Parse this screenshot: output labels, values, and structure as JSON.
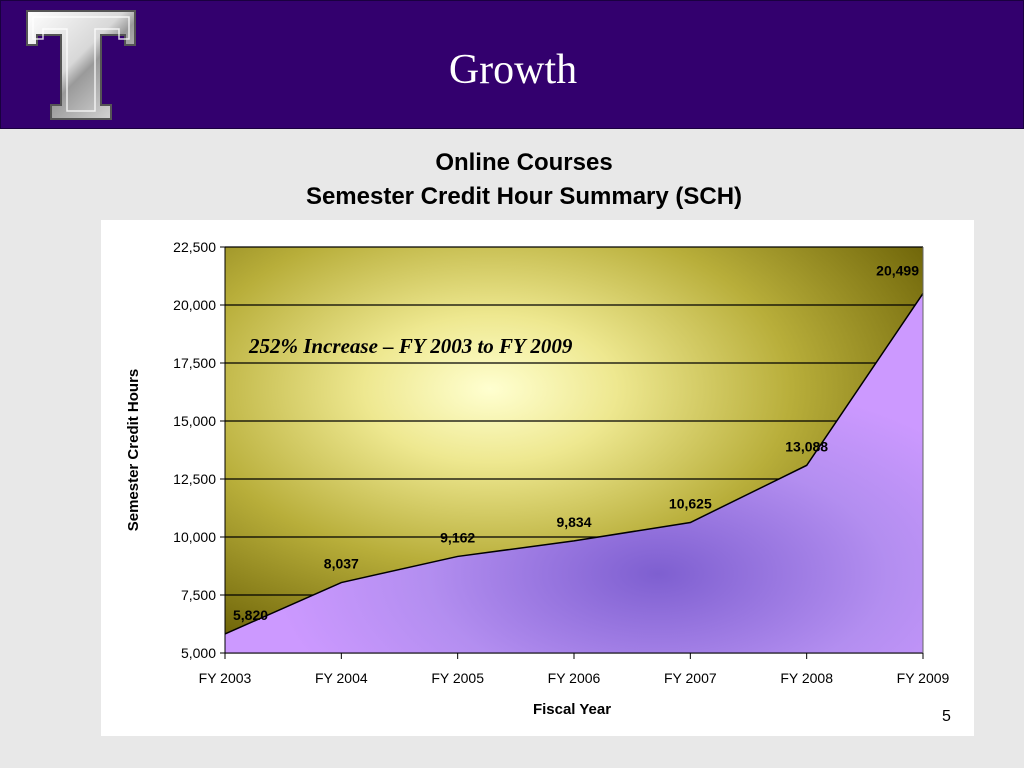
{
  "slide": {
    "title": "Growth",
    "page_number": "5",
    "logo_letter": "T",
    "colors": {
      "header_bg": "#33006e",
      "area_fill": "#cc99ff",
      "plot_bg": "#7a7010"
    }
  },
  "chart_data": {
    "type": "area",
    "title": "Online Courses",
    "subtitle": "Semester Credit Hour Summary (SCH)",
    "xlabel": "Fiscal Year",
    "ylabel": "Semester Credit Hours",
    "categories": [
      "FY 2003",
      "FY 2004",
      "FY 2005",
      "FY 2006",
      "FY 2007",
      "FY 2008",
      "FY 2009"
    ],
    "values": [
      5820,
      8037,
      9162,
      9834,
      10625,
      13088,
      20499
    ],
    "data_labels": [
      "5,820",
      "8,037",
      "9,162",
      "9,834",
      "10,625",
      "13,088",
      "20,499"
    ],
    "ylim": [
      5000,
      22500
    ],
    "yticks": [
      5000,
      7500,
      10000,
      12500,
      15000,
      17500,
      20000,
      22500
    ],
    "ytick_labels": [
      "5,000",
      "7,500",
      "10,000",
      "12,500",
      "15,000",
      "17,500",
      "20,000",
      "22,500"
    ],
    "grid": true,
    "annotation": "252% Increase – FY 2003 to FY 2009"
  }
}
